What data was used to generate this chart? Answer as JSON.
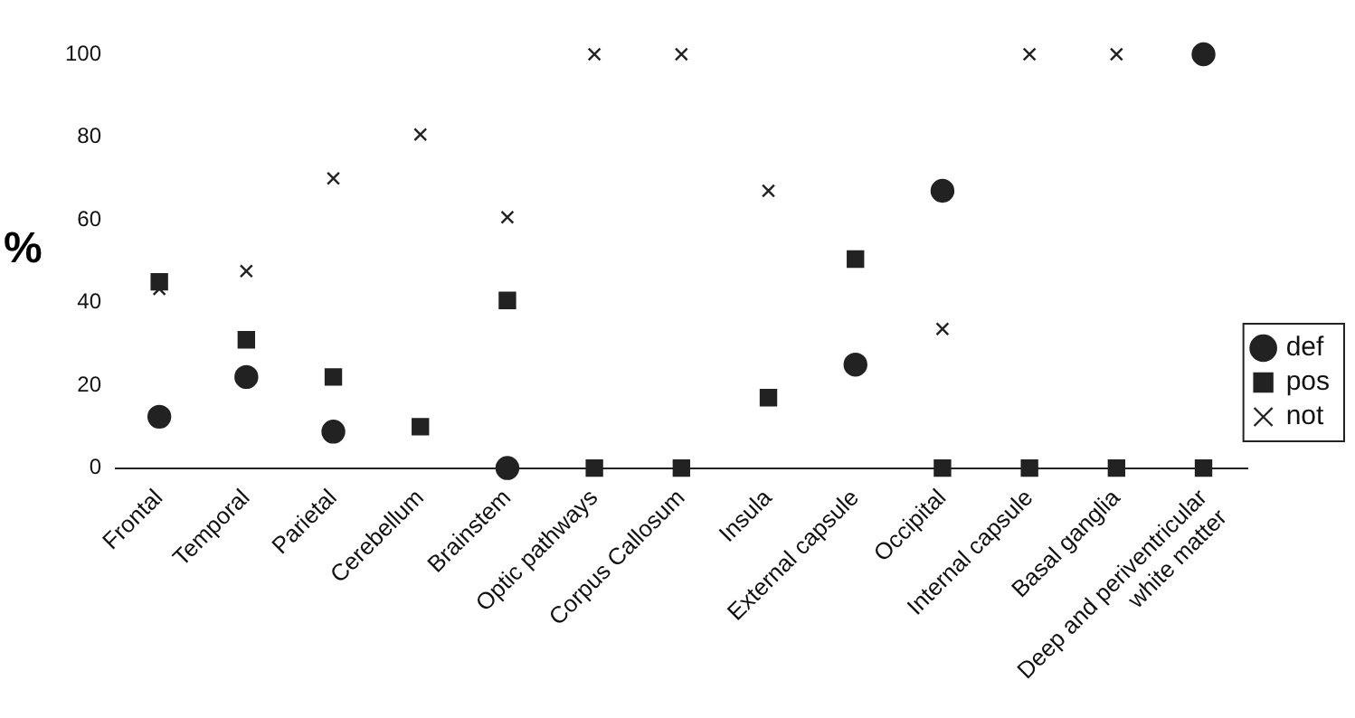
{
  "chart_data": {
    "type": "scatter",
    "ylabel": "%",
    "categories": [
      "Frontal",
      "Temporal",
      "Parietal",
      "Cerebellum",
      "Brainstem",
      "Optic pathways",
      "Corpus Callosum",
      "Insula",
      "External capsule",
      "Occipital",
      "Internal capsule",
      "Basal ganglia",
      "Deep and periventricular white matter"
    ],
    "series": [
      {
        "name": "def",
        "color": "#222222",
        "marker": "circle",
        "values": [
          12.4,
          22,
          8.8,
          null,
          0,
          null,
          null,
          null,
          25,
          67,
          null,
          null,
          100
        ]
      },
      {
        "name": "pos",
        "color": "#222222",
        "marker": "square",
        "values": [
          45,
          31,
          22,
          10,
          40.5,
          0,
          0,
          17,
          50.5,
          0,
          0,
          0,
          0
        ]
      },
      {
        "name": "not",
        "color": "#222222",
        "marker": "cross",
        "values": [
          43.3,
          47.6,
          70,
          80.6,
          60.6,
          100,
          100,
          67,
          null,
          33.6,
          100,
          100,
          null
        ]
      }
    ],
    "ylim": [
      0,
      100
    ],
    "yticks": [
      0,
      20,
      40,
      60,
      80,
      100
    ],
    "grid": false,
    "legend": "right"
  }
}
